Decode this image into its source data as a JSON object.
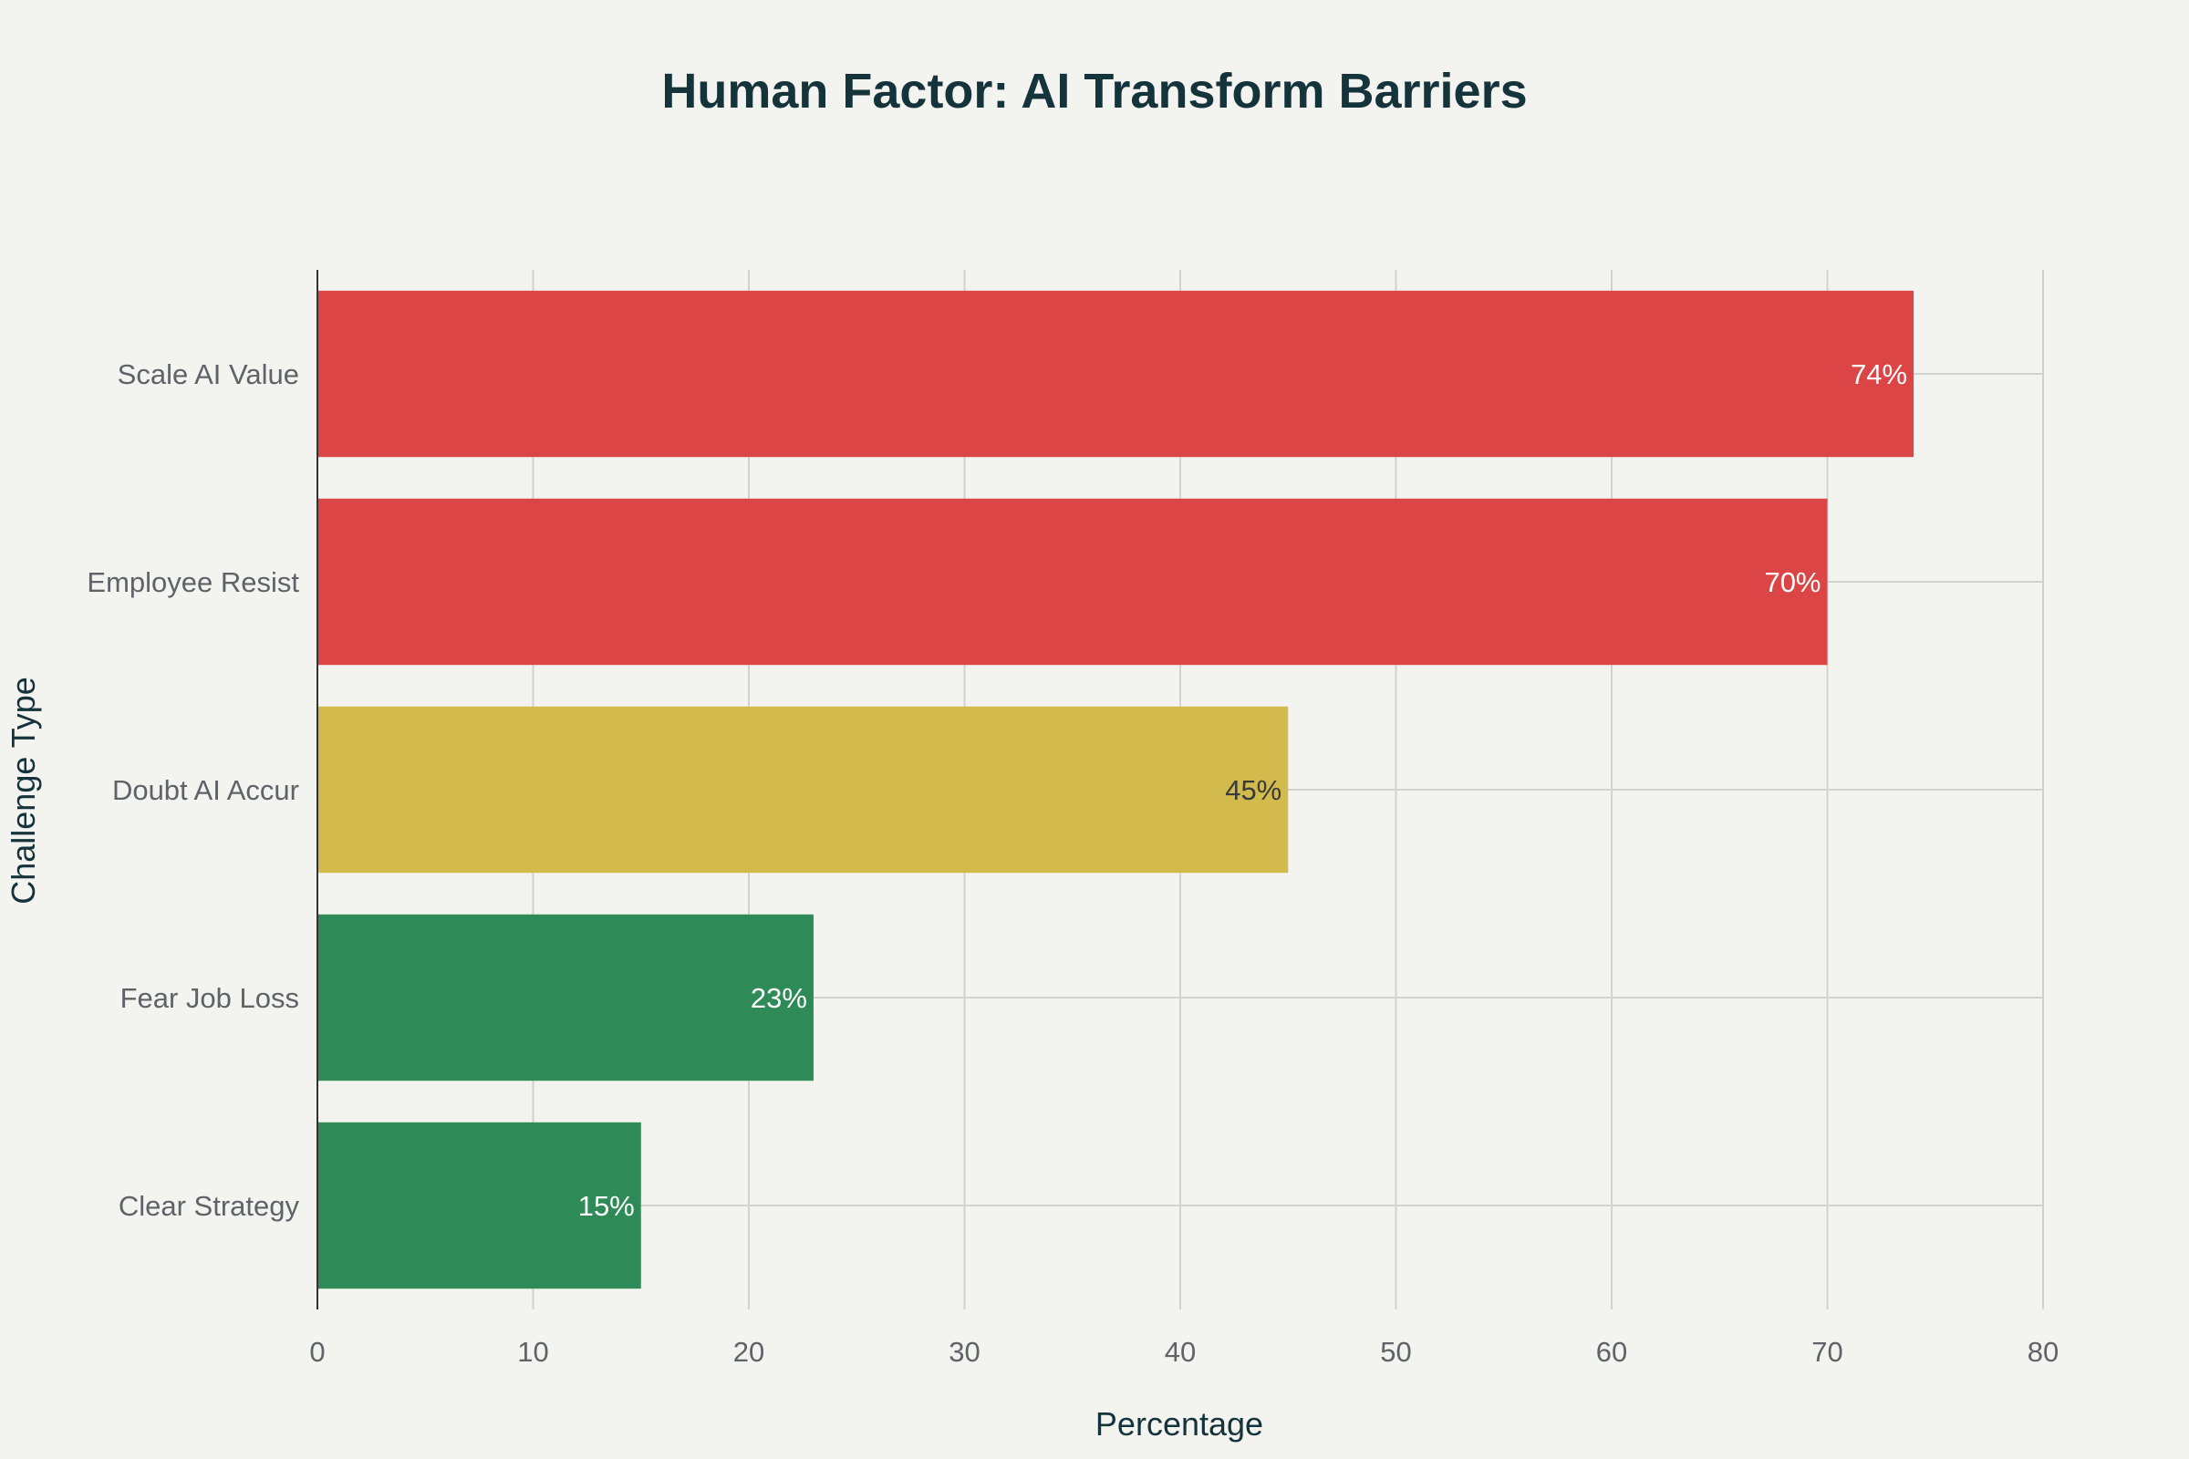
{
  "chart_data": {
    "type": "bar",
    "orientation": "horizontal",
    "title": "Human Factor: AI Transform Barriers",
    "xlabel": "Percentage",
    "ylabel": "Challenge Type",
    "xlim": [
      0,
      80
    ],
    "xticks": [
      0,
      10,
      20,
      30,
      40,
      50,
      60,
      70,
      80
    ],
    "grid": true,
    "legend": "none",
    "categories": [
      "Scale AI Value",
      "Employee Resist",
      "Doubt AI Accur",
      "Fear Job Loss",
      "Clear Strategy"
    ],
    "values": [
      74,
      70,
      45,
      23,
      15
    ],
    "data_labels": [
      "74%",
      "70%",
      "45%",
      "23%",
      "15%"
    ],
    "colors": [
      "#db4545",
      "#db4545",
      "#d2ba4c",
      "#2e8b57",
      "#2e8b57"
    ],
    "label_colors": [
      "#ffffff",
      "#ffffff",
      "#3a3a3a",
      "#ffffff",
      "#ffffff"
    ]
  },
  "colors": {
    "background": "#f3f3ef",
    "title": "#14333a",
    "tick_text": "#5f6368",
    "gridline": "#d2d3cf",
    "axis_line": "#333333"
  }
}
